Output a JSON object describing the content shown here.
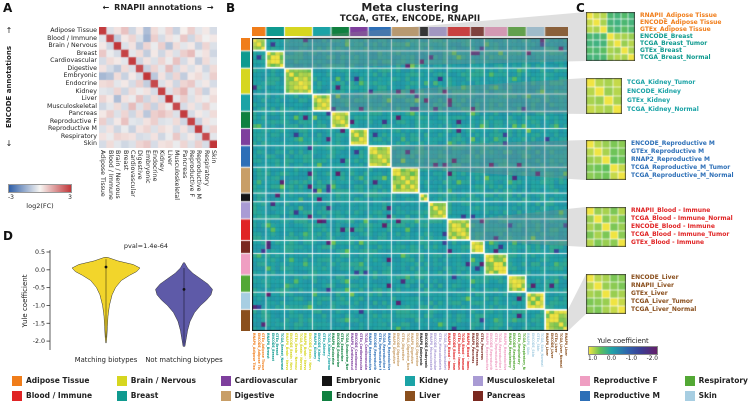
{
  "figure": {
    "panel_labels": {
      "a": "A",
      "b": "B",
      "c": "C",
      "d": "D"
    }
  },
  "biotypes": [
    "Adipose Tissue",
    "Blood / Immune",
    "Brain / Nervous",
    "Breast",
    "Cardiovascular",
    "Digestive",
    "Embryonic",
    "Endocrine",
    "Kidney",
    "Liver",
    "Musculoskeletal",
    "Pancreas",
    "Reproductive F",
    "Reproductive M",
    "Respiratory",
    "Skin"
  ],
  "biotype_colors": {
    "Adipose Tissue": "#f07d1a",
    "Blood / Immune": "#e02425",
    "Brain / Nervous": "#d6d620",
    "Breast": "#0f9a8f",
    "Cardiovascular": "#7e3f9d",
    "Digestive": "#c89e67",
    "Embryonic": "#141414",
    "Endocrine": "#108040",
    "Kidney": "#1ba3a6",
    "Liver": "#8a4f1d",
    "Musculoskeletal": "#a99bd4",
    "Pancreas": "#7a2820",
    "Reproductive F": "#ef9ec2",
    "Reproductive M": "#2d6fb7",
    "Respiratory": "#53a835",
    "Skin": "#a7cee2"
  },
  "panel_a": {
    "col_axis_title": "RNAPII annotations",
    "row_axis_title": "ENCODE annotations",
    "arrow_left": "←",
    "arrow_right": "→",
    "arrow_up": "↑",
    "arrow_down": "↓",
    "colorbar": {
      "label": "log2(FC)",
      "min_label": "-3",
      "max_label": "3",
      "min_color": "#2f5fa8",
      "mid_color": "#f7f5f2",
      "max_color": "#c13639"
    }
  },
  "panel_b": {
    "title": "Meta clustering",
    "subtitle": "TCGA, GTEx, ENCODE, RNAPII",
    "legend_title": "Yule coefficient",
    "legend_ticks": [
      "1.0",
      "0.0",
      "-1.0",
      "-2.0"
    ]
  },
  "panel_d": {
    "ylabel": "Yule coefficient",
    "pval": "pval=1.4e-64",
    "categories": [
      "Matching biotypes",
      "Not matching biotypes"
    ]
  },
  "yule_colormap": [
    [
      -2,
      "#641e68"
    ],
    [
      -1.3,
      "#3b3d93"
    ],
    [
      -0.7,
      "#2e64ad"
    ],
    [
      0,
      "#20a3a8"
    ],
    [
      0.5,
      "#5fc05a"
    ],
    [
      1,
      "#f0e442"
    ]
  ],
  "chart_data": {
    "panel_a": {
      "type": "heatmap",
      "rows_axis": "ENCODE annotations",
      "cols_axis": "RNAPII annotations",
      "value_label": "log2(FC)",
      "value_range": [
        -3,
        3
      ],
      "values": [
        [
          2.9,
          -0.4,
          0.3,
          0.8,
          -0.6,
          0.2,
          -1.1,
          0.4,
          -0.2,
          0.5,
          -0.7,
          0.1,
          0.6,
          -0.3,
          0.2,
          -0.5
        ],
        [
          -0.3,
          2.7,
          -0.8,
          0.2,
          0.5,
          -0.4,
          -1.3,
          0.6,
          -0.5,
          0.3,
          -0.2,
          0.7,
          -0.6,
          0.4,
          -0.1,
          0.2
        ],
        [
          0.2,
          -0.6,
          3.0,
          -0.4,
          0.3,
          -0.9,
          0.5,
          -0.2,
          0.6,
          -1.0,
          0.4,
          -0.3,
          0.2,
          -0.7,
          0.5,
          -0.4
        ],
        [
          0.7,
          -0.2,
          -0.5,
          2.8,
          -0.3,
          0.4,
          -0.8,
          0.2,
          -0.6,
          0.3,
          -0.4,
          0.6,
          0.9,
          -0.2,
          0.3,
          -0.6
        ],
        [
          -0.5,
          0.4,
          0.2,
          -0.3,
          2.9,
          -0.6,
          0.3,
          -0.4,
          0.5,
          -0.2,
          0.8,
          -0.5,
          0.2,
          -0.8,
          0.4,
          -0.3
        ],
        [
          0.3,
          -0.5,
          -0.9,
          0.4,
          -0.4,
          2.6,
          -0.7,
          0.5,
          -0.3,
          0.9,
          -0.5,
          0.3,
          -0.4,
          0.2,
          -0.6,
          0.4
        ],
        [
          -1.2,
          -1.0,
          0.4,
          -0.7,
          0.2,
          -0.5,
          3.0,
          -0.9,
          0.3,
          -0.6,
          0.5,
          -0.8,
          0.2,
          0.4,
          -0.3,
          0.6
        ],
        [
          0.4,
          0.5,
          -0.3,
          0.2,
          -0.5,
          0.6,
          -0.8,
          2.7,
          -0.4,
          0.3,
          -0.6,
          0.5,
          0.7,
          -0.3,
          0.2,
          -0.5
        ],
        [
          -0.3,
          -0.4,
          0.5,
          -0.6,
          0.4,
          -0.2,
          0.3,
          -0.5,
          2.8,
          -0.4,
          0.6,
          1.0,
          -0.3,
          0.5,
          -0.7,
          0.2
        ],
        [
          0.5,
          0.2,
          -1.1,
          0.3,
          -0.2,
          0.8,
          -0.6,
          0.4,
          -0.5,
          3.0,
          -0.3,
          0.6,
          -0.4,
          0.3,
          -0.2,
          0.4
        ],
        [
          -0.6,
          -0.3,
          0.4,
          -0.5,
          0.9,
          -0.4,
          0.6,
          -0.7,
          0.5,
          -0.2,
          2.7,
          -0.5,
          0.3,
          -0.4,
          0.6,
          -0.2
        ],
        [
          0.2,
          0.6,
          -0.4,
          0.5,
          -0.6,
          0.4,
          -0.9,
          0.6,
          0.8,
          0.5,
          -0.4,
          2.9,
          -0.5,
          0.2,
          -0.3,
          0.4
        ],
        [
          0.6,
          -0.5,
          0.2,
          0.8,
          -0.3,
          -0.4,
          0.3,
          0.6,
          -0.4,
          -0.3,
          0.4,
          -0.6,
          2.8,
          -0.7,
          0.3,
          -0.2
        ],
        [
          -0.4,
          0.3,
          -0.6,
          -0.2,
          -0.7,
          0.3,
          0.5,
          -0.4,
          0.4,
          0.2,
          -0.5,
          0.3,
          -0.6,
          2.9,
          -0.4,
          0.5
        ],
        [
          0.3,
          -0.2,
          0.5,
          0.4,
          0.3,
          -0.5,
          -0.4,
          0.3,
          -0.6,
          -0.2,
          0.7,
          -0.4,
          0.2,
          -0.5,
          2.7,
          -0.3
        ],
        [
          -0.5,
          0.4,
          -0.3,
          -0.6,
          -0.4,
          0.5,
          0.7,
          -0.5,
          0.3,
          0.4,
          -0.2,
          0.5,
          -0.4,
          0.6,
          -0.5,
          3.0
        ]
      ]
    },
    "panel_b": {
      "type": "heatmap",
      "value_label": "Yule coefficient",
      "value_range": [
        -2,
        1
      ],
      "member_prefixes": [
        "RNAPII",
        "ENCODE",
        "GTEx",
        "TCGA"
      ],
      "groups": [
        {
          "name": "Adipose Tissue",
          "size": 3
        },
        {
          "name": "Breast",
          "size": 4
        },
        {
          "name": "Brain / Nervous",
          "size": 6
        },
        {
          "name": "Kidney",
          "size": 4
        },
        {
          "name": "Endocrine",
          "size": 4
        },
        {
          "name": "Cardiovascular",
          "size": 4
        },
        {
          "name": "Reproductive M",
          "size": 5
        },
        {
          "name": "Digestive",
          "size": 6
        },
        {
          "name": "Embryonic",
          "size": 2
        },
        {
          "name": "Musculoskeletal",
          "size": 4
        },
        {
          "name": "Blood / Immune",
          "size": 5
        },
        {
          "name": "Pancreas",
          "size": 3
        },
        {
          "name": "Reproductive F",
          "size": 5
        },
        {
          "name": "Respiratory",
          "size": 4
        },
        {
          "name": "Skin",
          "size": 4
        },
        {
          "name": "Liver",
          "size": 5
        }
      ]
    },
    "panel_c_insets": [
      {
        "source_groups": [
          "Adipose Tissue",
          "Breast"
        ],
        "labels": [
          "RNAPII_Adipose Tissue",
          "ENCODE_Adipose Tissue",
          "GTEx_Adipose Tissue",
          "ENCODE_Breast",
          "TCGA_Breast_Tumor",
          "GTEx_Breast",
          "TCGA_Breast_Normal"
        ],
        "label_biotypes": [
          "Adipose Tissue",
          "Adipose Tissue",
          "Adipose Tissue",
          "Breast",
          "Breast",
          "Breast",
          "Breast"
        ],
        "matrix": [
          [
            1,
            0.85,
            0.8,
            0.35,
            0.3,
            0.4,
            0.3
          ],
          [
            0.85,
            1,
            0.75,
            0.3,
            0.25,
            0.35,
            0.3
          ],
          [
            0.8,
            0.75,
            1,
            0.4,
            0.3,
            0.45,
            0.35
          ],
          [
            0.35,
            0.3,
            0.4,
            1,
            0.8,
            0.75,
            0.7
          ],
          [
            0.3,
            0.25,
            0.3,
            0.8,
            1,
            0.7,
            0.8
          ],
          [
            0.4,
            0.35,
            0.45,
            0.75,
            0.7,
            1,
            0.75
          ],
          [
            0.3,
            0.3,
            0.35,
            0.7,
            0.8,
            0.75,
            1
          ]
        ]
      },
      {
        "source_groups": [
          "Kidney"
        ],
        "labels": [
          "TCGA_Kidney_Tumor",
          "ENCODE_Kidney",
          "GTEx_Kidney",
          "TCGA_Kidney_Normal"
        ],
        "label_biotypes": [
          "Kidney",
          "Kidney",
          "Kidney",
          "Kidney"
        ],
        "matrix": [
          [
            1,
            0.8,
            0.75,
            0.85
          ],
          [
            0.8,
            1,
            0.7,
            0.8
          ],
          [
            0.75,
            0.7,
            1,
            0.75
          ],
          [
            0.85,
            0.8,
            0.75,
            1
          ]
        ]
      },
      {
        "source_groups": [
          "Reproductive M"
        ],
        "labels": [
          "ENCODE_Reproductive M",
          "GTEx_Reproductive M",
          "RNAP2_Reproductive M",
          "TCGA_Reproductive_M_Tumor",
          "TCGA_Reproductive_M_Normal"
        ],
        "label_biotypes": [
          "Reproductive M",
          "Reproductive M",
          "Reproductive M",
          "Reproductive M",
          "Reproductive M"
        ],
        "matrix": [
          [
            1,
            0.8,
            0.7,
            0.6,
            0.65
          ],
          [
            0.8,
            1,
            0.75,
            0.55,
            0.6
          ],
          [
            0.7,
            0.75,
            1,
            0.5,
            0.55
          ],
          [
            0.6,
            0.55,
            0.5,
            1,
            0.85
          ],
          [
            0.65,
            0.6,
            0.55,
            0.85,
            1
          ]
        ]
      },
      {
        "source_groups": [
          "Blood / Immune"
        ],
        "labels": [
          "RNAPII_Blood - Immune",
          "TCGA_Blood - Immune_Normal",
          "ENCODE_Blood - Immune",
          "TCGA_Blood - Immune_Tumor",
          "GTEx_Blood - Immune"
        ],
        "label_biotypes": [
          "Blood / Immune",
          "Blood / Immune",
          "Blood / Immune",
          "Blood / Immune",
          "Blood / Immune"
        ],
        "matrix": [
          [
            1,
            0.7,
            0.75,
            0.6,
            0.8
          ],
          [
            0.7,
            1,
            0.65,
            0.75,
            0.6
          ],
          [
            0.75,
            0.65,
            1,
            0.6,
            0.7
          ],
          [
            0.6,
            0.75,
            0.6,
            1,
            0.65
          ],
          [
            0.8,
            0.6,
            0.7,
            0.65,
            1
          ]
        ]
      },
      {
        "source_groups": [
          "Liver"
        ],
        "labels": [
          "ENCODE_Liver",
          "RNAPII_Liver",
          "GTEx_Liver",
          "TCGA_Liver_Tumor",
          "TCGA_Liver_Normal"
        ],
        "label_biotypes": [
          "Liver",
          "Liver",
          "Liver",
          "Liver",
          "Liver"
        ],
        "matrix": [
          [
            1,
            0.8,
            0.75,
            0.6,
            0.65
          ],
          [
            0.8,
            1,
            0.7,
            0.65,
            0.6
          ],
          [
            0.75,
            0.7,
            1,
            0.7,
            0.75
          ],
          [
            0.6,
            0.65,
            0.7,
            1,
            0.85
          ],
          [
            0.65,
            0.6,
            0.75,
            0.85,
            1
          ]
        ]
      }
    ],
    "panel_d": {
      "type": "violin",
      "ylim": [
        -2.25,
        0.5
      ],
      "yticks": [
        0.5,
        0.0,
        -0.5,
        -1.0,
        -1.5,
        -2.0
      ],
      "pval": "pval=1.4e-64",
      "series": [
        {
          "name": "Matching biotypes",
          "color": "#f2d52b",
          "median": 0.08,
          "stick": [
            0.3,
            -1.9
          ],
          "profile": [
            [
              0.35,
              0.04
            ],
            [
              0.25,
              0.35
            ],
            [
              0.15,
              0.8
            ],
            [
              0.05,
              1.0
            ],
            [
              -0.05,
              0.9
            ],
            [
              -0.15,
              0.7
            ],
            [
              -0.3,
              0.45
            ],
            [
              -0.5,
              0.28
            ],
            [
              -0.7,
              0.18
            ],
            [
              -1.0,
              0.1
            ],
            [
              -1.3,
              0.06
            ],
            [
              -1.6,
              0.04
            ],
            [
              -1.9,
              0.025
            ],
            [
              -2.05,
              0.01
            ]
          ]
        },
        {
          "name": "Not matching biotypes",
          "color": "#5e5aa8",
          "median": -0.55,
          "stick": [
            0.05,
            -2.1
          ],
          "profile": [
            [
              0.2,
              0.02
            ],
            [
              0.05,
              0.12
            ],
            [
              -0.1,
              0.3
            ],
            [
              -0.25,
              0.55
            ],
            [
              -0.4,
              0.8
            ],
            [
              -0.55,
              0.95
            ],
            [
              -0.7,
              0.9
            ],
            [
              -0.85,
              0.75
            ],
            [
              -1.0,
              0.55
            ],
            [
              -1.2,
              0.35
            ],
            [
              -1.45,
              0.2
            ],
            [
              -1.7,
              0.12
            ],
            [
              -1.95,
              0.07
            ],
            [
              -2.15,
              0.03
            ]
          ]
        }
      ]
    }
  }
}
